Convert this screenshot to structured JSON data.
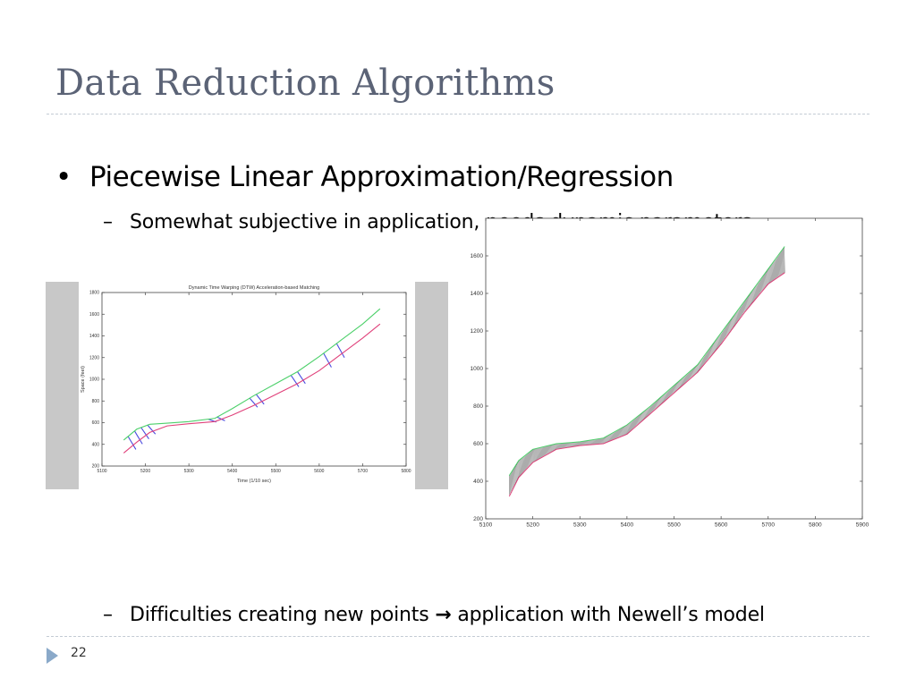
{
  "slide": {
    "title": "Data Reduction Algorithms",
    "bullet": "Piecewise Linear Approximation/Regression",
    "sub1": "Somewhat subjective in application, needs dynamic parameters",
    "sub2_part1": "Difficulties creating new points",
    "sub2_arrow": "→",
    "sub2_part2": "application with Newell’s model",
    "page_number": "22"
  },
  "chart_data": [
    {
      "type": "line",
      "title": "Dynamic Time Warping (DTW) Acceleration-based Matching",
      "xlabel": "Time (1/10 sec)",
      "ylabel": "Space (feet)",
      "xlim": [
        5100,
        5800
      ],
      "ylim": [
        200,
        1800
      ],
      "x_ticks": [
        "5100",
        "5200",
        "5300",
        "5400",
        "5500",
        "5600",
        "5700",
        "5800"
      ],
      "y_ticks": [
        "200",
        "400",
        "600",
        "800",
        "1000",
        "1200",
        "1400",
        "1600",
        "1800"
      ],
      "series": [
        {
          "color": "#4cd06a",
          "x": [
            5150,
            5180,
            5210,
            5250,
            5300,
            5360,
            5400,
            5450,
            5500,
            5550,
            5600,
            5650,
            5700,
            5740
          ],
          "y": [
            440,
            540,
            585,
            595,
            610,
            640,
            730,
            850,
            960,
            1070,
            1210,
            1360,
            1510,
            1650
          ]
        },
        {
          "color": "#e0407a",
          "x": [
            5150,
            5180,
            5210,
            5250,
            5300,
            5360,
            5400,
            5450,
            5500,
            5550,
            5600,
            5650,
            5700,
            5740
          ],
          "y": [
            320,
            420,
            510,
            570,
            590,
            610,
            670,
            760,
            860,
            960,
            1080,
            1230,
            1380,
            1510
          ]
        }
      ],
      "match_color": "#4a4ae0"
    },
    {
      "type": "line",
      "xlim": [
        5100,
        5900
      ],
      "ylim": [
        200,
        1800
      ],
      "x_ticks": [
        "5100",
        "5200",
        "5300",
        "5400",
        "5500",
        "5600",
        "5700",
        "5800",
        "5900"
      ],
      "y_ticks": [
        "200",
        "400",
        "600",
        "800",
        "1000",
        "1200",
        "1400",
        "1600"
      ],
      "series": [
        {
          "color": "#4cd06a",
          "x": [
            5150,
            5170,
            5200,
            5250,
            5300,
            5350,
            5400,
            5450,
            5500,
            5550,
            5600,
            5650,
            5700,
            5735
          ],
          "y": [
            430,
            510,
            570,
            600,
            610,
            630,
            700,
            800,
            910,
            1020,
            1190,
            1360,
            1530,
            1650
          ]
        },
        {
          "color": "#e0407a",
          "x": [
            5150,
            5170,
            5200,
            5250,
            5300,
            5350,
            5400,
            5450,
            5500,
            5550,
            5600,
            5650,
            5700,
            5735
          ],
          "y": [
            320,
            420,
            500,
            570,
            590,
            600,
            650,
            760,
            870,
            980,
            1130,
            1300,
            1450,
            1510
          ]
        }
      ],
      "match_color": "#222222"
    }
  ]
}
